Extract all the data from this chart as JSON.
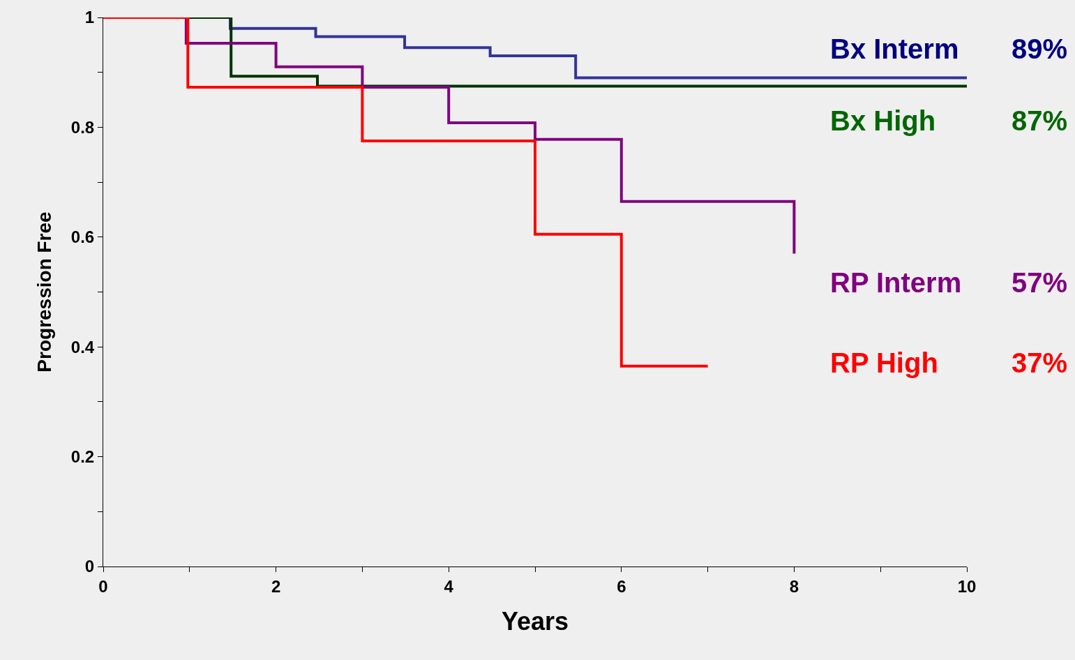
{
  "chart_data": {
    "type": "step",
    "xlabel": "Years",
    "ylabel": "Progression Free",
    "xlim": [
      0,
      10
    ],
    "xticks": [
      0,
      2,
      4,
      6,
      8,
      10
    ],
    "ylim": [
      0,
      1
    ],
    "yticks": [
      0,
      0.2,
      0.4,
      0.6,
      0.8,
      1
    ],
    "grid": false,
    "legend": false,
    "marker": "none",
    "line_style": "solid",
    "series": [
      {
        "name": "Bx Interm",
        "color": "#333399",
        "x": [
          0,
          1.47,
          2.46,
          3.49,
          4.48,
          5.47,
          10
        ],
        "values": [
          1,
          0.98,
          0.965,
          0.945,
          0.93,
          0.89,
          0.89
        ]
      },
      {
        "name": "Bx High",
        "color": "#003300",
        "x": [
          0,
          1.48,
          2.48,
          10
        ],
        "values": [
          1,
          0.893,
          0.875,
          0.875
        ]
      },
      {
        "name": "RP Interm",
        "color": "#800080",
        "x": [
          0,
          0.96,
          2,
          3,
          4,
          5,
          6,
          8,
          8
        ],
        "values": [
          1,
          0.953,
          0.91,
          0.873,
          0.808,
          0.778,
          0.665,
          0.665,
          0.57
        ]
      },
      {
        "name": "RP High",
        "color": "#ff0000",
        "x": [
          0,
          0.98,
          3,
          5,
          6,
          7
        ],
        "values": [
          1,
          0.873,
          0.775,
          0.605,
          0.365,
          0.365
        ]
      }
    ],
    "annotations": [
      "89%",
      "87%",
      "57%",
      "37%"
    ]
  }
}
